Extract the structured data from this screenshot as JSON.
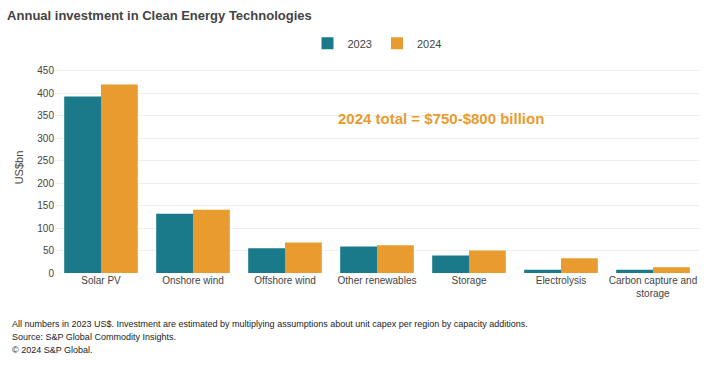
{
  "chart_data": {
    "type": "bar",
    "title": "Annual investment in Clean Energy Technologies",
    "ylabel": "US$bn",
    "categories": [
      "Solar PV",
      "Onshore wind",
      "Offshore wind",
      "Other renewables",
      "Storage",
      "Electrolysis",
      "Carbon capture and\nstorage"
    ],
    "series": [
      {
        "name": "2023",
        "color": "#1a7a8a",
        "values": [
          393,
          132,
          55,
          59,
          39,
          7,
          7
        ]
      },
      {
        "name": "2024",
        "color": "#e89c2f",
        "values": [
          420,
          141,
          68,
          62,
          50,
          33,
          13
        ]
      }
    ],
    "ylim": [
      0,
      470
    ],
    "yticks": [
      0,
      50,
      100,
      150,
      200,
      250,
      300,
      350,
      400,
      450
    ],
    "grid": true,
    "legend": "top",
    "annotations": [
      {
        "text": "2024 total = $750-$800 billion",
        "color": "#e89c2f"
      }
    ],
    "footnotes": [
      "All numbers in 2023 US$. Investment are estimated by multiplying assumptions about unit capex per region by capacity additions.",
      "Source: S&P Global Commodity Insights.",
      "© 2024 S&P Global."
    ]
  }
}
